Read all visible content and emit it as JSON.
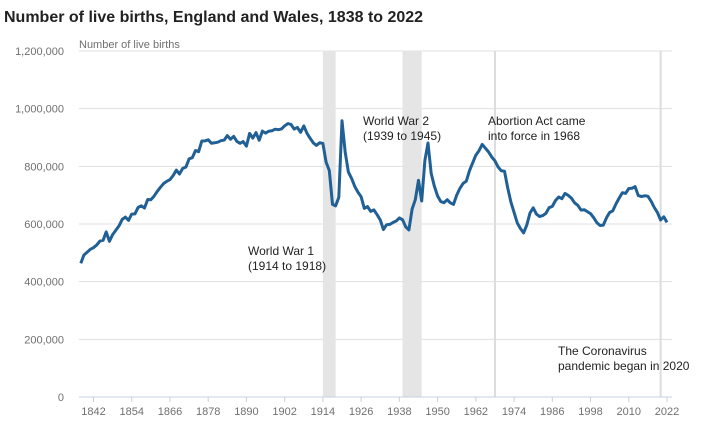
{
  "chart_data": {
    "type": "line",
    "title": "Number of live births, England and Wales, 1838 to 2022",
    "ylabel": "Number of live births",
    "xlabel": "",
    "ylim": [
      0,
      1200000
    ],
    "xlim": [
      1838,
      2022
    ],
    "yticks": [
      0,
      200000,
      400000,
      600000,
      800000,
      1000000,
      1200000
    ],
    "ytick_labels": [
      "0",
      "200,000",
      "400,000",
      "600,000",
      "800,000",
      "1,000,000",
      "1,200,000"
    ],
    "xticks": [
      1842,
      1854,
      1866,
      1878,
      1890,
      1902,
      1914,
      1926,
      1938,
      1950,
      1962,
      1974,
      1986,
      1998,
      2010,
      2022
    ],
    "xtick_labels": [
      "1842",
      "1854",
      "1866",
      "1878",
      "1890",
      "1902",
      "1914",
      "1926",
      "1938",
      "1950",
      "1962",
      "1974",
      "1986",
      "1998",
      "2010",
      "2022"
    ],
    "grid": true,
    "line_color": "#206095",
    "series": [
      {
        "name": "Live births",
        "x": [
          1838,
          1839,
          1840,
          1841,
          1842,
          1843,
          1844,
          1845,
          1846,
          1847,
          1848,
          1849,
          1850,
          1851,
          1852,
          1853,
          1854,
          1855,
          1856,
          1857,
          1858,
          1859,
          1860,
          1861,
          1862,
          1863,
          1864,
          1865,
          1866,
          1867,
          1868,
          1869,
          1870,
          1871,
          1872,
          1873,
          1874,
          1875,
          1876,
          1877,
          1878,
          1879,
          1880,
          1881,
          1882,
          1883,
          1884,
          1885,
          1886,
          1887,
          1888,
          1889,
          1890,
          1891,
          1892,
          1893,
          1894,
          1895,
          1896,
          1897,
          1898,
          1899,
          1900,
          1901,
          1902,
          1903,
          1904,
          1905,
          1906,
          1907,
          1908,
          1909,
          1910,
          1911,
          1912,
          1913,
          1914,
          1915,
          1916,
          1917,
          1918,
          1919,
          1920,
          1921,
          1922,
          1923,
          1924,
          1925,
          1926,
          1927,
          1928,
          1929,
          1930,
          1931,
          1932,
          1933,
          1934,
          1935,
          1936,
          1937,
          1938,
          1939,
          1940,
          1941,
          1942,
          1943,
          1944,
          1945,
          1946,
          1947,
          1948,
          1949,
          1950,
          1951,
          1952,
          1953,
          1954,
          1955,
          1956,
          1957,
          1958,
          1959,
          1960,
          1961,
          1962,
          1963,
          1964,
          1965,
          1966,
          1967,
          1968,
          1969,
          1970,
          1971,
          1972,
          1973,
          1974,
          1975,
          1976,
          1977,
          1978,
          1979,
          1980,
          1981,
          1982,
          1983,
          1984,
          1985,
          1986,
          1987,
          1988,
          1989,
          1990,
          1991,
          1992,
          1993,
          1994,
          1995,
          1996,
          1997,
          1998,
          1999,
          2000,
          2001,
          2002,
          2003,
          2004,
          2005,
          2006,
          2007,
          2008,
          2009,
          2010,
          2011,
          2012,
          2013,
          2014,
          2015,
          2016,
          2017,
          2018,
          2019,
          2020,
          2021,
          2022
        ],
        "values": [
          463787,
          492574,
          502303,
          512158,
          517739,
          527325,
          540763,
          543521,
          572625,
          539965,
          563059,
          578159,
          593422,
          615865,
          624012,
          612391,
          634405,
          635043,
          657453,
          663071,
          655481,
          685039,
          684048,
          696406,
          712684,
          727417,
          740275,
          748069,
          753870,
          768349,
          786858,
          773381,
          792787,
          797428,
          825907,
          829778,
          854956,
          850607,
          887968,
          888200,
          891906,
          880389,
          881643,
          883642,
          889014,
          890722,
          906750,
          894270,
          903760,
          886331,
          879868,
          885944,
          869937,
          914157,
          897957,
          917006,
          890289,
          922291,
          915331,
          921693,
          923165,
          928646,
          927062,
          929807,
          940509,
          948271,
          945389,
          929293,
          935081,
          918042,
          940383,
          914472,
          896962,
          881138,
          872737,
          881890,
          879096,
          814614,
          785520,
          668346,
          662661,
          692438,
          957782,
          848814,
          780124,
          758131,
          729933,
          710582,
          694563,
          654172,
          660267,
          643673,
          648811,
          632081,
          613972,
          580413,
          597642,
          598756,
          605292,
          610557,
          621204,
          614479,
          590120,
          579091,
          651503,
          684334,
          751478,
          679937,
          820719,
          881026,
          775306,
          730518,
          697097,
          677529,
          673735,
          684372,
          673651,
          667811,
          700335,
          723381,
          740715,
          748501,
          785005,
          811281,
          838736,
          854055,
          875972,
          862725,
          849823,
          832164,
          819272,
          797538,
          784486,
          783155,
          725440,
          675953,
          639885,
          603445,
          584270,
          569259,
          596418,
          638028,
          656234,
          634492,
          625931,
          629134,
          636818,
          656417,
          661018,
          681511,
          693577,
          687725,
          706140,
          699217,
          689656,
          673467,
          664726,
          648138,
          649485,
          643095,
          635901,
          621872,
          604441,
          594634,
          596122,
          621469,
          639721,
          645835,
          669601,
          690013,
          708711,
          706248,
          723165,
          723913,
          729674,
          698512,
          695233,
          697852,
          696271,
          679106,
          657076,
          640370,
          613936,
          624828,
          605479
        ]
      }
    ],
    "shaded_periods": [
      {
        "label_line1": "World War 1",
        "label_line2": "(1914 to 1918)",
        "start": 1914,
        "end": 1918
      },
      {
        "label_line1": "World War 2",
        "label_line2": "(1939 to 1945)",
        "start": 1939,
        "end": 1945
      }
    ],
    "annotations": [
      {
        "line1": "Abortion Act came",
        "line2": "into force in 1968",
        "year": 1968
      },
      {
        "line1": "The Coronavirus",
        "line2": "pandemic began in 2020",
        "year": 2020
      }
    ]
  }
}
